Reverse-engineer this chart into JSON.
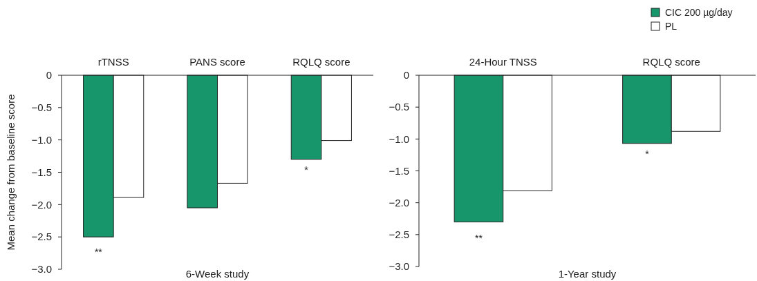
{
  "chart_data": [
    {
      "type": "bar",
      "xlabel": "6-Week study",
      "ylabel": "Mean change from baseline score",
      "categories": [
        "rTNSS",
        "PANS score",
        "RQLQ score"
      ],
      "series": [
        {
          "color": "#17966b",
          "values": [
            -2.5,
            -2.05,
            -1.3
          ]
        },
        {
          "color": "#ffffff",
          "values": [
            -1.89,
            -1.67,
            -1.01
          ]
        }
      ],
      "ylim": [
        -3,
        0
      ],
      "yticks": [
        0,
        -0.5,
        {
          "value": -1,
          "label": "−1.0"
        },
        -1.5,
        {
          "value": -2,
          "label": "−2.0"
        },
        -2.5,
        {
          "value": -3,
          "label": "−3.0"
        }
      ],
      "grid": false,
      "legend": false,
      "annotations": [
        "**",
        "*"
      ]
    },
    {
      "type": "bar",
      "xlabel": "1-Year study",
      "categories": [
        "24-Hour TNSS",
        "RQLQ score"
      ],
      "series": [
        {
          "name": "CIC 200 µg/day",
          "color": "#17966b",
          "values": [
            -2.3,
            -1.07
          ]
        },
        {
          "name": "PL",
          "color": "#ffffff",
          "values": [
            -1.81,
            -0.88
          ]
        }
      ],
      "ylim": [
        -3,
        0
      ],
      "yticks": [
        0,
        -0.5,
        {
          "value": -1,
          "label": "−1.0"
        },
        -1.5,
        {
          "value": -2,
          "label": "−2.0"
        },
        -2.5,
        {
          "value": -3,
          "label": "−3.0"
        }
      ],
      "grid": false,
      "legend": "top right",
      "annotations": [
        "**",
        "*"
      ]
    }
  ]
}
